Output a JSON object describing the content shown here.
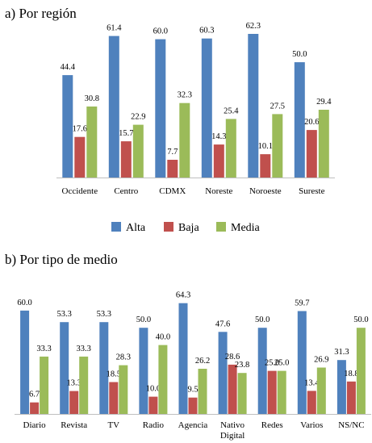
{
  "colors": {
    "Alta": "#4f81bd",
    "Baja": "#c0504d",
    "Media": "#9bbb59"
  },
  "legend": [
    "Alta",
    "Baja",
    "Media"
  ],
  "chart_data": [
    {
      "type": "bar",
      "title": "a) Por región",
      "categories": [
        "Occidente",
        "Centro",
        "CDMX",
        "Noreste",
        "Noroeste",
        "Sureste"
      ],
      "series": [
        {
          "name": "Alta",
          "values": [
            44.4,
            61.4,
            60.0,
            60.3,
            62.3,
            50.0
          ]
        },
        {
          "name": "Baja",
          "values": [
            17.6,
            15.7,
            7.7,
            14.3,
            10.1,
            20.6
          ]
        },
        {
          "name": "Media",
          "values": [
            30.8,
            22.9,
            32.3,
            25.4,
            27.5,
            29.4
          ]
        }
      ],
      "value_labels": {
        "Alta": [
          "44.4",
          "61.4",
          "60.0",
          "60.3",
          "62.3",
          "50.0"
        ],
        "Baja": [
          "17.6",
          "15.7",
          "7.7",
          "14.3",
          "10.1",
          "20.6"
        ],
        "Media": [
          "30.8",
          "22.9",
          "32.3",
          "25.4",
          "27.5",
          "29.4"
        ]
      },
      "ylim": [
        0,
        70
      ],
      "grid": false,
      "legend": "bottom"
    },
    {
      "type": "bar",
      "title": "b) Por tipo de medio",
      "categories": [
        "Diario",
        "Revista",
        "TV",
        "Radio",
        "Agencia",
        "Nativo Digital",
        "Redes",
        "Varios",
        "NS/NC"
      ],
      "series": [
        {
          "name": "Alta",
          "values": [
            60.0,
            53.3,
            53.3,
            50.0,
            64.3,
            47.6,
            50.0,
            59.7,
            31.3
          ]
        },
        {
          "name": "Baja",
          "values": [
            6.7,
            13.3,
            18.5,
            10.0,
            9.5,
            28.6,
            25.0,
            13.4,
            18.8
          ]
        },
        {
          "name": "Media",
          "values": [
            33.3,
            33.3,
            28.3,
            40.0,
            26.2,
            23.8,
            25.0,
            26.9,
            50.0
          ]
        }
      ],
      "value_labels": {
        "Alta": [
          "60.0",
          "53.3",
          "53.3",
          "50.0",
          "64.3",
          "47.6",
          "50.0",
          "59.7",
          "31.3"
        ],
        "Baja": [
          "6.7",
          "13.3",
          "18.5",
          "10.0",
          "9.5",
          "28.6",
          "25.0",
          "13.4",
          "18.8"
        ],
        "Media": [
          "33.3",
          "33.3",
          "28.3",
          "40.0",
          "26.2",
          "23.8",
          "25.0",
          "26.9",
          "50.0"
        ]
      },
      "ylim": [
        0,
        70
      ],
      "grid": false
    }
  ]
}
